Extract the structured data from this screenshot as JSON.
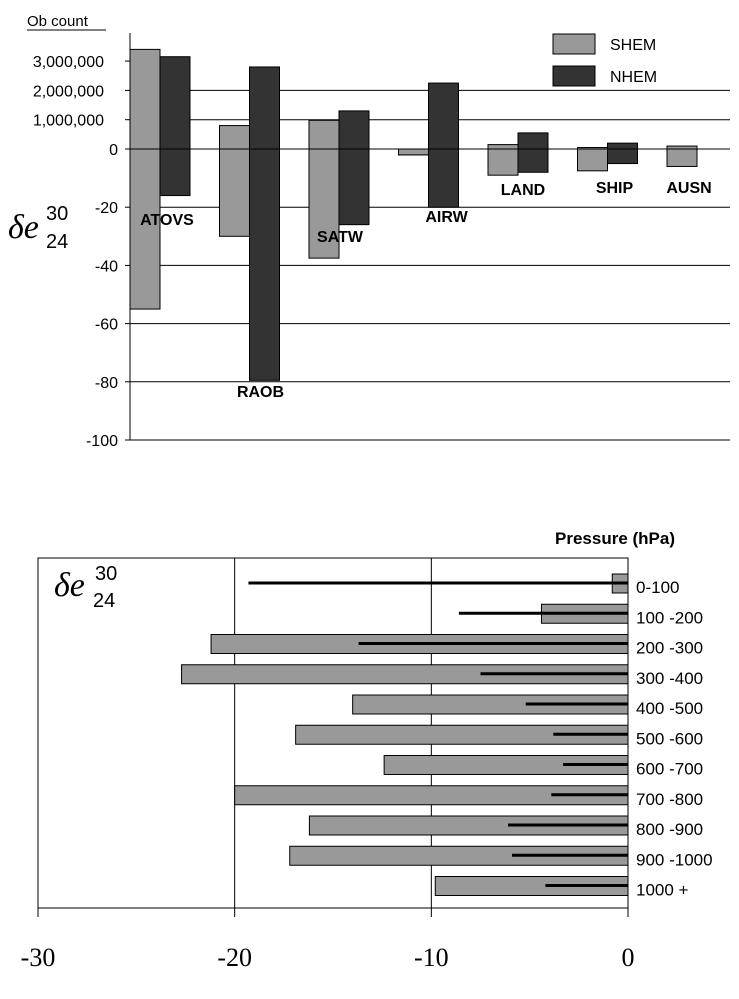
{
  "chart_data": [
    {
      "type": "bar",
      "ob_count_label": "Ob count",
      "ob_count_ticks": [
        "3,000,000",
        "2,000,000",
        "1,000,000"
      ],
      "y_label_main": "δe",
      "y_label_sup": "30",
      "y_label_sub": "24",
      "ylim": [
        -100,
        0
      ],
      "yticks": [
        0,
        -20,
        -40,
        -60,
        -80,
        -100
      ],
      "categories": [
        "ATOVS",
        "RAOB",
        "SATW",
        "AIRW",
        "LAND",
        "SHIP",
        "AUSN"
      ],
      "series": [
        {
          "name": "SHEM",
          "color": "#999999",
          "impact": [
            -55,
            -30,
            -37.5,
            -2,
            -9,
            -7.5,
            -6
          ],
          "ob_count": [
            3400000,
            800000,
            980000,
            -200000,
            150000,
            50000,
            100000
          ]
        },
        {
          "name": "NHEM",
          "color": "#333333",
          "impact": [
            -16,
            -79.5,
            -26,
            -20,
            -8,
            -5,
            null
          ],
          "ob_count": [
            3150000,
            2800000,
            1300000,
            2250000,
            550000,
            200000,
            null
          ]
        }
      ],
      "legend_position": "top-right",
      "grid": true
    },
    {
      "type": "bar",
      "orientation": "horizontal",
      "y_label_main": "δe",
      "y_label_sup": "30",
      "y_label_sub": "24",
      "category_title": "Pressure (hPa)",
      "categories": [
        "0-100",
        "100 -200",
        "200 -300",
        "300 -400",
        "400 -500",
        "500 -600",
        "600 -700",
        "700 -800",
        "800 -900",
        "900 -1000",
        "1000 +"
      ],
      "xlim": [
        -30,
        0
      ],
      "xticks": [
        "-30",
        "-20",
        "-10",
        "0"
      ],
      "bar_values": [
        -0.8,
        -4.4,
        -21.2,
        -22.7,
        -14,
        -16.9,
        -12.4,
        -20,
        -16.2,
        -17.2,
        -9.8
      ],
      "line_values": [
        -19.3,
        -8.6,
        -13.7,
        -7.5,
        -5.2,
        -3.8,
        -3.3,
        -3.9,
        -6.1,
        -5.9,
        -4.2
      ],
      "bar_color": "#999999",
      "line_color": "#000000",
      "grid": true
    }
  ]
}
